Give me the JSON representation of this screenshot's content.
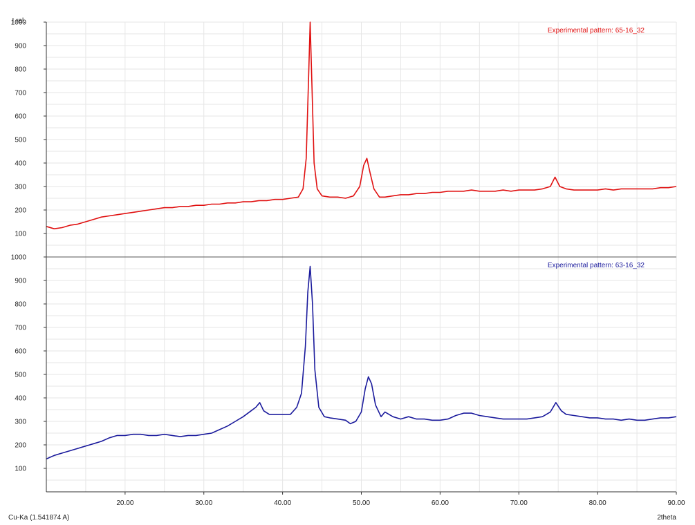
{
  "chart_data": [
    {
      "type": "line",
      "legend_label": "Experimental pattern: 65-16_32",
      "legend_placement": "top-right",
      "color": "#e01010",
      "ylabel": "I rel.",
      "xlabel": "2theta",
      "xlim": [
        10,
        90
      ],
      "ylim": [
        0,
        1000
      ],
      "yticks": [
        100,
        200,
        300,
        400,
        500,
        600,
        700,
        800,
        900,
        1000
      ],
      "grid": true,
      "x": [
        10,
        11,
        12,
        13,
        14,
        15,
        16,
        17,
        18,
        19,
        20,
        21,
        22,
        23,
        24,
        25,
        26,
        27,
        28,
        29,
        30,
        31,
        32,
        33,
        34,
        35,
        36,
        37,
        38,
        39,
        40,
        41,
        42,
        42.6,
        43.0,
        43.3,
        43.5,
        43.7,
        44.0,
        44.4,
        45,
        46,
        47,
        48,
        49,
        49.8,
        50.3,
        50.7,
        51.1,
        51.6,
        52.3,
        53,
        54,
        55,
        56,
        57,
        58,
        59,
        60,
        61,
        62,
        63,
        64,
        65,
        66,
        67,
        68,
        69,
        70,
        71,
        72,
        73,
        74,
        74.6,
        75.2,
        76,
        77,
        78,
        79,
        80,
        81,
        82,
        83,
        84,
        85,
        86,
        87,
        88,
        89,
        90
      ],
      "values": [
        130,
        120,
        125,
        135,
        140,
        150,
        160,
        170,
        175,
        180,
        185,
        190,
        195,
        200,
        205,
        210,
        210,
        215,
        215,
        220,
        220,
        225,
        225,
        230,
        230,
        235,
        235,
        240,
        240,
        245,
        245,
        250,
        255,
        290,
        420,
        760,
        1000,
        760,
        400,
        290,
        260,
        255,
        255,
        250,
        260,
        300,
        390,
        420,
        360,
        290,
        255,
        255,
        260,
        265,
        265,
        270,
        270,
        275,
        275,
        280,
        280,
        280,
        285,
        280,
        280,
        280,
        285,
        280,
        285,
        285,
        285,
        290,
        300,
        340,
        300,
        290,
        285,
        285,
        285,
        285,
        290,
        285,
        290,
        290,
        290,
        290,
        290,
        295,
        295,
        300
      ]
    },
    {
      "type": "line",
      "legend_label": "Experimental pattern: 63-16_32",
      "legend_placement": "top-right",
      "color": "#1a1a9c",
      "xlim": [
        10,
        90
      ],
      "ylim": [
        0,
        1000
      ],
      "yticks": [
        100,
        200,
        300,
        400,
        500,
        600,
        700,
        800,
        900,
        1000
      ],
      "xticks": [
        "20.00",
        "30.00",
        "40.00",
        "50.00",
        "60.00",
        "70.00",
        "80.00",
        "90.00"
      ],
      "grid": true,
      "x": [
        10,
        11,
        12,
        13,
        14,
        15,
        16,
        17,
        18,
        19,
        20,
        21,
        22,
        23,
        24,
        25,
        26,
        27,
        28,
        29,
        30,
        31,
        32,
        33,
        34,
        35,
        36,
        36.6,
        37.1,
        37.6,
        38.3,
        39,
        40,
        41,
        41.8,
        42.4,
        42.9,
        43.2,
        43.5,
        43.8,
        44.1,
        44.6,
        45.3,
        46,
        47,
        48,
        48.6,
        49.3,
        50,
        50.5,
        50.9,
        51.3,
        51.8,
        52.5,
        53,
        54,
        55,
        56,
        57,
        58,
        59,
        60,
        61,
        62,
        63,
        64,
        65,
        66,
        67,
        68,
        69,
        70,
        71,
        72,
        73,
        74,
        74.7,
        75.4,
        76,
        77,
        78,
        79,
        80,
        81,
        82,
        83,
        84,
        85,
        86,
        87,
        88,
        89,
        90
      ],
      "values": [
        140,
        155,
        165,
        175,
        185,
        195,
        205,
        215,
        230,
        240,
        240,
        245,
        245,
        240,
        240,
        245,
        240,
        235,
        240,
        240,
        245,
        250,
        265,
        280,
        300,
        320,
        345,
        360,
        380,
        345,
        330,
        330,
        330,
        330,
        360,
        420,
        620,
        850,
        960,
        800,
        520,
        360,
        320,
        315,
        310,
        305,
        290,
        300,
        340,
        440,
        490,
        460,
        370,
        320,
        340,
        320,
        310,
        320,
        310,
        310,
        305,
        305,
        310,
        325,
        335,
        335,
        325,
        320,
        315,
        310,
        310,
        310,
        310,
        315,
        320,
        340,
        380,
        345,
        330,
        325,
        320,
        315,
        315,
        310,
        310,
        305,
        310,
        305,
        305,
        310,
        315,
        315,
        320
      ]
    }
  ],
  "footer": {
    "wavelength": "Cu-Ka (1.541874 A)"
  }
}
